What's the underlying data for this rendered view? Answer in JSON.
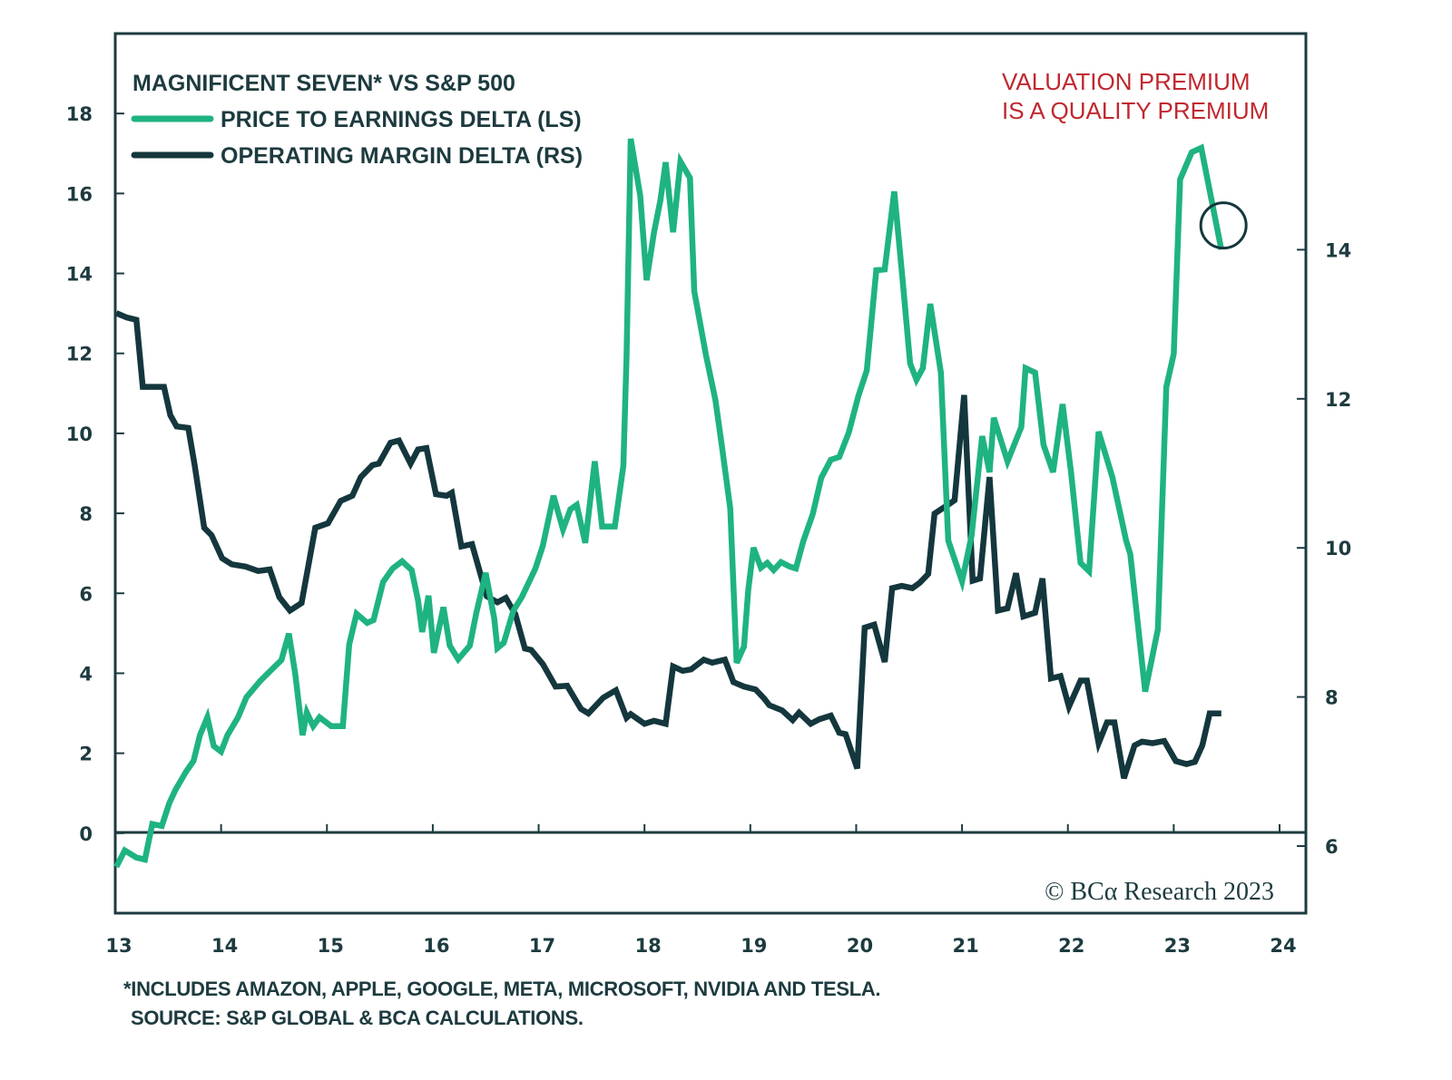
{
  "chart_data": {
    "type": "line",
    "title": "MAGNIFICENT SEVEN* VS S&P 500",
    "annotation": [
      "VALUATION PREMIUM",
      "IS A QUALITY PREMIUM"
    ],
    "annotation_color": "#c0282f",
    "copyright": "© BCα Research 2023",
    "x_ticks": [
      "13",
      "14",
      "15",
      "16",
      "17",
      "18",
      "19",
      "20",
      "21",
      "22",
      "23",
      "24"
    ],
    "xlim": [
      13,
      24
    ],
    "left_axis": {
      "label": "LS",
      "ylim": [
        -2.0,
        20.0
      ],
      "ticks": [
        "0",
        "2",
        "4",
        "6",
        "8",
        "10",
        "12",
        "14",
        "16",
        "18"
      ]
    },
    "right_axis": {
      "label": "RS",
      "ylim": [
        5.1,
        16.9
      ],
      "ticks": [
        "6",
        "8",
        "10",
        "12",
        "14"
      ]
    },
    "grid": false,
    "legend_position": "top-left",
    "highlight_circle": {
      "series": "PRICE TO EARNINGS DELTA (LS)",
      "x": 23.47,
      "y": 15.2
    },
    "series": [
      {
        "name": "PRICE TO EARNINGS DELTA (LS)",
        "axis": "left",
        "color": "#1fb382",
        "points": [
          [
            13.01,
            -0.84
          ],
          [
            13.09,
            -0.43
          ],
          [
            13.2,
            -0.61
          ],
          [
            13.28,
            -0.66
          ],
          [
            13.35,
            0.23
          ],
          [
            13.44,
            0.18
          ],
          [
            13.51,
            0.75
          ],
          [
            13.57,
            1.09
          ],
          [
            13.67,
            1.54
          ],
          [
            13.74,
            1.81
          ],
          [
            13.8,
            2.45
          ],
          [
            13.87,
            2.9
          ],
          [
            13.93,
            2.18
          ],
          [
            14.0,
            2.04
          ],
          [
            14.06,
            2.45
          ],
          [
            14.16,
            2.9
          ],
          [
            14.24,
            3.4
          ],
          [
            14.37,
            3.81
          ],
          [
            14.5,
            4.15
          ],
          [
            14.57,
            4.33
          ],
          [
            14.64,
            4.99
          ],
          [
            14.7,
            3.99
          ],
          [
            14.77,
            2.45
          ],
          [
            14.81,
            3.02
          ],
          [
            14.87,
            2.68
          ],
          [
            14.93,
            2.9
          ],
          [
            15.04,
            2.68
          ],
          [
            15.15,
            2.68
          ],
          [
            15.21,
            4.72
          ],
          [
            15.28,
            5.49
          ],
          [
            15.38,
            5.26
          ],
          [
            15.44,
            5.33
          ],
          [
            15.53,
            6.28
          ],
          [
            15.62,
            6.62
          ],
          [
            15.71,
            6.8
          ],
          [
            15.8,
            6.58
          ],
          [
            15.86,
            5.83
          ],
          [
            15.9,
            5.03
          ],
          [
            15.96,
            5.94
          ],
          [
            16.01,
            4.51
          ],
          [
            16.1,
            5.65
          ],
          [
            16.16,
            4.69
          ],
          [
            16.24,
            4.35
          ],
          [
            16.35,
            4.69
          ],
          [
            16.41,
            5.49
          ],
          [
            16.5,
            6.51
          ],
          [
            16.58,
            5.37
          ],
          [
            16.61,
            4.63
          ],
          [
            16.67,
            4.76
          ],
          [
            16.76,
            5.56
          ],
          [
            16.84,
            5.9
          ],
          [
            16.97,
            6.62
          ],
          [
            17.04,
            7.19
          ],
          [
            17.14,
            8.44
          ],
          [
            17.23,
            7.6
          ],
          [
            17.3,
            8.1
          ],
          [
            17.36,
            8.21
          ],
          [
            17.44,
            7.26
          ],
          [
            17.53,
            9.3
          ],
          [
            17.6,
            7.67
          ],
          [
            17.72,
            7.67
          ],
          [
            17.8,
            9.19
          ],
          [
            17.83,
            11.9
          ],
          [
            17.87,
            17.37
          ],
          [
            17.96,
            15.94
          ],
          [
            18.02,
            13.83
          ],
          [
            18.09,
            15.03
          ],
          [
            18.15,
            15.83
          ],
          [
            18.2,
            16.78
          ],
          [
            18.27,
            15.03
          ],
          [
            18.34,
            16.8
          ],
          [
            18.43,
            16.39
          ],
          [
            18.47,
            13.56
          ],
          [
            18.58,
            11.97
          ],
          [
            18.67,
            10.84
          ],
          [
            18.73,
            9.71
          ],
          [
            18.81,
            8.12
          ],
          [
            18.87,
            4.26
          ],
          [
            18.94,
            4.67
          ],
          [
            18.98,
            6.08
          ],
          [
            19.03,
            7.14
          ],
          [
            19.1,
            6.64
          ],
          [
            19.16,
            6.76
          ],
          [
            19.22,
            6.58
          ],
          [
            19.29,
            6.78
          ],
          [
            19.37,
            6.67
          ],
          [
            19.43,
            6.62
          ],
          [
            19.5,
            7.3
          ],
          [
            19.59,
            7.98
          ],
          [
            19.67,
            8.89
          ],
          [
            19.76,
            9.34
          ],
          [
            19.84,
            9.41
          ],
          [
            19.93,
            10.02
          ],
          [
            20.02,
            10.93
          ],
          [
            20.1,
            11.57
          ],
          [
            20.19,
            14.08
          ],
          [
            20.27,
            14.1
          ],
          [
            20.36,
            16.05
          ],
          [
            20.44,
            13.79
          ],
          [
            20.51,
            11.75
          ],
          [
            20.57,
            11.34
          ],
          [
            20.63,
            11.63
          ],
          [
            20.7,
            13.24
          ],
          [
            20.74,
            12.54
          ],
          [
            20.8,
            11.52
          ],
          [
            20.87,
            7.32
          ],
          [
            21.0,
            6.3
          ],
          [
            21.09,
            7.44
          ],
          [
            21.19,
            9.93
          ],
          [
            21.26,
            9.03
          ],
          [
            21.3,
            10.39
          ],
          [
            21.43,
            9.3
          ],
          [
            21.56,
            10.16
          ],
          [
            21.6,
            11.63
          ],
          [
            21.69,
            11.52
          ],
          [
            21.77,
            9.71
          ],
          [
            21.86,
            9.03
          ],
          [
            21.95,
            10.73
          ],
          [
            22.03,
            9.03
          ],
          [
            22.12,
            6.76
          ],
          [
            22.2,
            6.55
          ],
          [
            22.29,
            10.04
          ],
          [
            22.42,
            8.91
          ],
          [
            22.55,
            7.32
          ],
          [
            22.59,
            6.98
          ],
          [
            22.73,
            3.54
          ],
          [
            22.85,
            5.1
          ],
          [
            22.93,
            11.16
          ],
          [
            23.0,
            11.99
          ],
          [
            23.06,
            16.35
          ],
          [
            23.17,
            17.03
          ],
          [
            23.26,
            17.14
          ],
          [
            23.45,
            14.6
          ]
        ]
      },
      {
        "name": "OPERATING MARGIN DELTA (RS)",
        "axis": "right",
        "color": "#14373d",
        "points": [
          [
            13.01,
            13.15
          ],
          [
            13.11,
            13.09
          ],
          [
            13.2,
            13.06
          ],
          [
            13.26,
            12.16
          ],
          [
            13.46,
            12.16
          ],
          [
            13.52,
            11.78
          ],
          [
            13.58,
            11.63
          ],
          [
            13.69,
            11.61
          ],
          [
            13.75,
            11.11
          ],
          [
            13.84,
            10.27
          ],
          [
            13.91,
            10.17
          ],
          [
            14.01,
            9.86
          ],
          [
            14.1,
            9.78
          ],
          [
            14.23,
            9.75
          ],
          [
            14.35,
            9.69
          ],
          [
            14.46,
            9.71
          ],
          [
            14.55,
            9.34
          ],
          [
            14.65,
            9.16
          ],
          [
            14.76,
            9.26
          ],
          [
            14.89,
            10.27
          ],
          [
            15.01,
            10.33
          ],
          [
            15.13,
            10.63
          ],
          [
            15.24,
            10.7
          ],
          [
            15.32,
            10.95
          ],
          [
            15.43,
            11.11
          ],
          [
            15.49,
            11.13
          ],
          [
            15.6,
            11.41
          ],
          [
            15.68,
            11.44
          ],
          [
            15.79,
            11.13
          ],
          [
            15.86,
            11.32
          ],
          [
            15.94,
            11.34
          ],
          [
            16.03,
            10.72
          ],
          [
            16.13,
            10.7
          ],
          [
            16.18,
            10.74
          ],
          [
            16.27,
            10.02
          ],
          [
            16.37,
            10.05
          ],
          [
            16.51,
            9.35
          ],
          [
            16.61,
            9.27
          ],
          [
            16.69,
            9.33
          ],
          [
            16.78,
            9.11
          ],
          [
            16.87,
            8.65
          ],
          [
            16.93,
            8.63
          ],
          [
            17.04,
            8.44
          ],
          [
            17.16,
            8.14
          ],
          [
            17.27,
            8.15
          ],
          [
            17.4,
            7.84
          ],
          [
            17.47,
            7.78
          ],
          [
            17.61,
            7.99
          ],
          [
            17.73,
            8.09
          ],
          [
            17.83,
            7.72
          ],
          [
            17.87,
            7.77
          ],
          [
            17.94,
            7.7
          ],
          [
            18.0,
            7.64
          ],
          [
            18.09,
            7.68
          ],
          [
            18.2,
            7.64
          ],
          [
            18.27,
            8.41
          ],
          [
            18.36,
            8.35
          ],
          [
            18.44,
            8.37
          ],
          [
            18.56,
            8.5
          ],
          [
            18.64,
            8.46
          ],
          [
            18.76,
            8.5
          ],
          [
            18.84,
            8.2
          ],
          [
            18.94,
            8.14
          ],
          [
            19.05,
            8.1
          ],
          [
            19.13,
            7.98
          ],
          [
            19.18,
            7.89
          ],
          [
            19.3,
            7.82
          ],
          [
            19.4,
            7.69
          ],
          [
            19.46,
            7.79
          ],
          [
            19.57,
            7.64
          ],
          [
            19.65,
            7.7
          ],
          [
            19.76,
            7.75
          ],
          [
            19.84,
            7.52
          ],
          [
            19.9,
            7.5
          ],
          [
            20.01,
            7.04
          ],
          [
            20.08,
            8.93
          ],
          [
            20.17,
            8.97
          ],
          [
            20.27,
            8.47
          ],
          [
            20.34,
            9.46
          ],
          [
            20.43,
            9.49
          ],
          [
            20.53,
            9.46
          ],
          [
            20.6,
            9.53
          ],
          [
            20.68,
            9.65
          ],
          [
            20.74,
            10.46
          ],
          [
            20.87,
            10.58
          ],
          [
            20.93,
            10.64
          ],
          [
            21.02,
            12.05
          ],
          [
            21.1,
            9.56
          ],
          [
            21.17,
            9.59
          ],
          [
            21.26,
            10.95
          ],
          [
            21.34,
            9.16
          ],
          [
            21.43,
            9.19
          ],
          [
            21.51,
            9.66
          ],
          [
            21.58,
            9.08
          ],
          [
            21.69,
            9.13
          ],
          [
            21.76,
            9.59
          ],
          [
            21.84,
            8.25
          ],
          [
            21.93,
            8.28
          ],
          [
            22.01,
            7.87
          ],
          [
            22.12,
            8.22
          ],
          [
            22.18,
            8.22
          ],
          [
            22.29,
            7.38
          ],
          [
            22.37,
            7.66
          ],
          [
            22.44,
            7.66
          ],
          [
            22.53,
            6.91
          ],
          [
            22.63,
            7.35
          ],
          [
            22.7,
            7.4
          ],
          [
            22.8,
            7.38
          ],
          [
            22.91,
            7.41
          ],
          [
            23.02,
            7.14
          ],
          [
            23.12,
            7.1
          ],
          [
            23.2,
            7.13
          ],
          [
            23.27,
            7.35
          ],
          [
            23.34,
            7.78
          ],
          [
            23.45,
            7.78
          ]
        ]
      }
    ],
    "footnotes": [
      "*INCLUDES AMAZON, APPLE, GOOGLE, META, MICROSOFT, NVIDIA AND TESLA.",
      "SOURCE: S&P GLOBAL & BCA CALCULATIONS."
    ]
  }
}
